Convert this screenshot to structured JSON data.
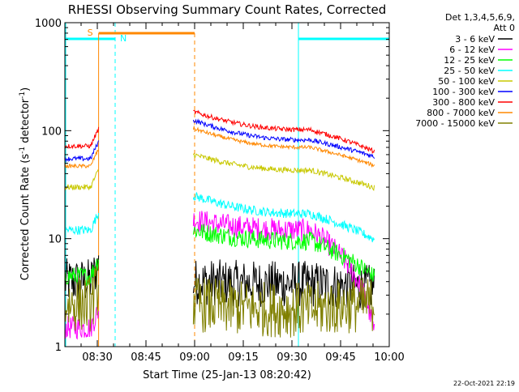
{
  "chart_data": {
    "type": "line",
    "title": "RHESSI Observing Summary Count Rates, Corrected",
    "xlabel": "Start Time (25-Jan-13 08:20:42)",
    "ylabel_main": "Corrected Count Rate (s",
    "ylabel_sup1": "-1",
    "ylabel_mid": " detector",
    "ylabel_sup2": "-1",
    "ylabel_end": ")",
    "ylim": [
      1,
      1000
    ],
    "yscale": "log",
    "xlim_minutes_from_0830": [
      -10,
      90
    ],
    "xticks": [
      {
        "label": "08:30",
        "t": 0
      },
      {
        "label": "08:45",
        "t": 15
      },
      {
        "label": "09:00",
        "t": 30
      },
      {
        "label": "09:15",
        "t": 45
      },
      {
        "label": "09:30",
        "t": 60
      },
      {
        "label": "09:45",
        "t": 75
      },
      {
        "label": "10:00",
        "t": 90
      }
    ],
    "yticks": [
      {
        "label": "1",
        "v": 1
      },
      {
        "label": "10",
        "v": 10
      },
      {
        "label": "100",
        "v": 100
      },
      {
        "label": "1000",
        "v": 1000
      }
    ],
    "legend": {
      "header": [
        "Det 1,3,4,5,6,9,",
        "Att 0"
      ],
      "placement": "right"
    },
    "series": [
      {
        "name": "3 - 6 keV",
        "color": "#000000",
        "before": 4,
        "after_start": 4,
        "after_mid": 3.8,
        "after_end": 3.5,
        "noise": 0.5
      },
      {
        "name": "6 - 12 keV",
        "color": "#ff00ff",
        "before": 1.5,
        "after_start": 15,
        "after_mid": 12,
        "after_end": 1.5,
        "noise": 0.25
      },
      {
        "name": "12 - 25 keV",
        "color": "#00ff00",
        "before": 4.5,
        "after_start": 12,
        "after_mid": 9.5,
        "after_end": 4.5,
        "noise": 0.2
      },
      {
        "name": "25 - 50 keV",
        "color": "#00ffff",
        "before": 12,
        "after_start": 25,
        "after_mid": 17,
        "after_end": 10,
        "noise": 0.1
      },
      {
        "name": "50 - 100 keV",
        "color": "#c8c800",
        "before": 30,
        "after_start": 60,
        "after_mid": 43,
        "after_end": 30,
        "noise": 0.06
      },
      {
        "name": "100 - 300 keV",
        "color": "#0000ff",
        "before": 55,
        "after_start": 125,
        "after_mid": 82,
        "after_end": 58,
        "noise": 0.05
      },
      {
        "name": "300 - 800 keV",
        "color": "#ff0000",
        "before": 72,
        "after_start": 150,
        "after_mid": 102,
        "after_end": 65,
        "noise": 0.05
      },
      {
        "name": "800 - 7000 keV",
        "color": "#ff8800",
        "before": 47,
        "after_start": 105,
        "after_mid": 70,
        "after_end": 48,
        "noise": 0.04
      },
      {
        "name": "7000 - 15000 keV",
        "color": "#808000",
        "before": 2.5,
        "after_start": 2.5,
        "after_mid": 2.2,
        "after_end": 2.5,
        "noise": 0.6
      }
    ],
    "data_gap": {
      "start": 0.4,
      "end": 29.6
    },
    "markers": {
      "saa_label": "S",
      "night_label": "N",
      "saa_color": "#ff8800",
      "night_color": "#00ffff",
      "saa_start": 0.4,
      "saa_end": 30,
      "night_intervals": [
        [
          -10,
          5.5
        ],
        [
          62,
          90
        ]
      ]
    }
  },
  "footer": {
    "timestamp": "22-Oct-2021 22:19"
  }
}
